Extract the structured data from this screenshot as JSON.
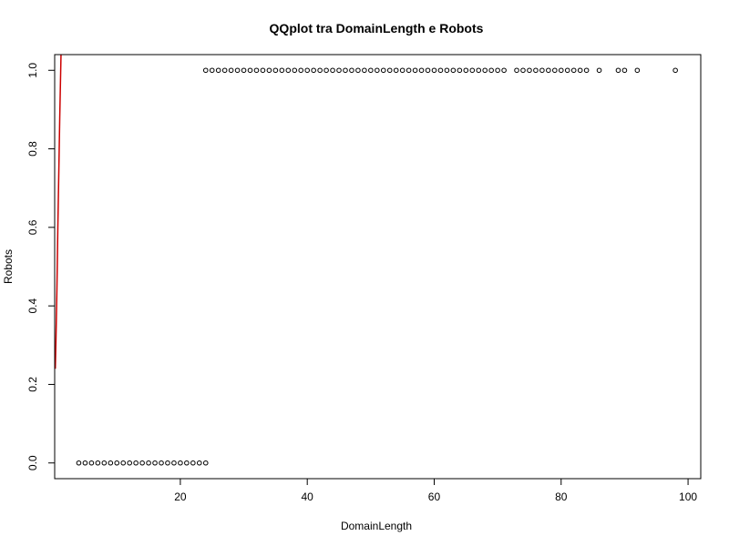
{
  "chart_data": {
    "type": "scatter",
    "title": "QQplot tra DomainLength e Robots",
    "xlabel": "DomainLength",
    "ylabel": "Robots",
    "xlim": [
      0.2,
      102
    ],
    "ylim": [
      -0.04,
      1.04
    ],
    "x_ticks": [
      20,
      40,
      60,
      80,
      100
    ],
    "x_tick_labels": [
      "20",
      "40",
      "60",
      "80",
      "100"
    ],
    "y_ticks": [
      0.0,
      0.2,
      0.4,
      0.6,
      0.8,
      1.0
    ],
    "y_tick_labels": [
      "0.0",
      "0.2",
      "0.4",
      "0.6",
      "0.8",
      "1.0"
    ],
    "grid": false,
    "colors": {
      "points": "#000000",
      "line": "#cc0000",
      "frame": "#000000"
    },
    "series": [
      {
        "marker": "open-circle",
        "points": [
          [
            4,
            0
          ],
          [
            5,
            0
          ],
          [
            6,
            0
          ],
          [
            7,
            0
          ],
          [
            8,
            0
          ],
          [
            9,
            0
          ],
          [
            10,
            0
          ],
          [
            11,
            0
          ],
          [
            12,
            0
          ],
          [
            13,
            0
          ],
          [
            14,
            0
          ],
          [
            15,
            0
          ],
          [
            16,
            0
          ],
          [
            17,
            0
          ],
          [
            18,
            0
          ],
          [
            19,
            0
          ],
          [
            20,
            0
          ],
          [
            21,
            0
          ],
          [
            22,
            0
          ],
          [
            23,
            0
          ],
          [
            24,
            0
          ],
          [
            24,
            1
          ],
          [
            25,
            1
          ],
          [
            26,
            1
          ],
          [
            27,
            1
          ],
          [
            28,
            1
          ],
          [
            29,
            1
          ],
          [
            30,
            1
          ],
          [
            31,
            1
          ],
          [
            32,
            1
          ],
          [
            33,
            1
          ],
          [
            34,
            1
          ],
          [
            35,
            1
          ],
          [
            36,
            1
          ],
          [
            37,
            1
          ],
          [
            38,
            1
          ],
          [
            39,
            1
          ],
          [
            40,
            1
          ],
          [
            41,
            1
          ],
          [
            42,
            1
          ],
          [
            43,
            1
          ],
          [
            44,
            1
          ],
          [
            45,
            1
          ],
          [
            46,
            1
          ],
          [
            47,
            1
          ],
          [
            48,
            1
          ],
          [
            49,
            1
          ],
          [
            50,
            1
          ],
          [
            51,
            1
          ],
          [
            52,
            1
          ],
          [
            53,
            1
          ],
          [
            54,
            1
          ],
          [
            55,
            1
          ],
          [
            56,
            1
          ],
          [
            57,
            1
          ],
          [
            58,
            1
          ],
          [
            59,
            1
          ],
          [
            60,
            1
          ],
          [
            61,
            1
          ],
          [
            62,
            1
          ],
          [
            63,
            1
          ],
          [
            64,
            1
          ],
          [
            65,
            1
          ],
          [
            66,
            1
          ],
          [
            67,
            1
          ],
          [
            68,
            1
          ],
          [
            69,
            1
          ],
          [
            70,
            1
          ],
          [
            71,
            1
          ],
          [
            73,
            1
          ],
          [
            74,
            1
          ],
          [
            75,
            1
          ],
          [
            76,
            1
          ],
          [
            77,
            1
          ],
          [
            78,
            1
          ],
          [
            79,
            1
          ],
          [
            80,
            1
          ],
          [
            81,
            1
          ],
          [
            82,
            1
          ],
          [
            83,
            1
          ],
          [
            84,
            1
          ],
          [
            86,
            1
          ],
          [
            89,
            1
          ],
          [
            90,
            1
          ],
          [
            92,
            1
          ],
          [
            98,
            1
          ]
        ]
      },
      {
        "style": "line",
        "points": [
          [
            0.3,
            0.24
          ],
          [
            0.4,
            0.31
          ],
          [
            0.55,
            0.44
          ],
          [
            0.7,
            0.6
          ],
          [
            0.85,
            0.74
          ],
          [
            1.0,
            0.88
          ],
          [
            1.2,
            1.04
          ]
        ]
      }
    ]
  }
}
